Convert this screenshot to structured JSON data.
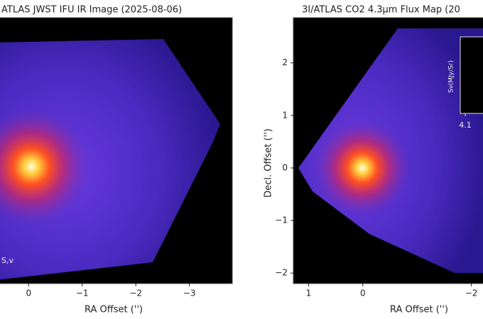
{
  "chart_data": [
    {
      "type": "image",
      "title": "ATLAS JWST IFU IR Image (2025-08-06)",
      "xlabel": "RA Offset ('')",
      "xlim": [
        0.6,
        -3.8
      ],
      "xticks": [
        0,
        {
          "value": -1,
          "label": "−1"
        },
        {
          "value": -2,
          "label": "−2"
        },
        {
          "value": -3,
          "label": "−3"
        }
      ],
      "ylim": [
        2.86,
        -2.2
      ],
      "annotation": "S,v"
    },
    {
      "type": "image",
      "title": "3I/ATLAS CO2 4.3μm Flux Map (20",
      "xlabel": "RA Offset ('')",
      "ylabel": "Decl. Offset ('')",
      "xlim": [
        1.28,
        -2.28
      ],
      "xticks": [
        1,
        0,
        {
          "value": -2,
          "label": "−2"
        }
      ],
      "ylim": [
        2.86,
        -2.2
      ],
      "yticks": [
        2,
        1,
        0,
        {
          "value": -1,
          "label": "−1"
        },
        {
          "value": -2,
          "label": "−2"
        }
      ],
      "inset": {
        "ylabel": "Sν(MJy/Sr)",
        "xticks": [
          4.1
        ]
      }
    }
  ]
}
